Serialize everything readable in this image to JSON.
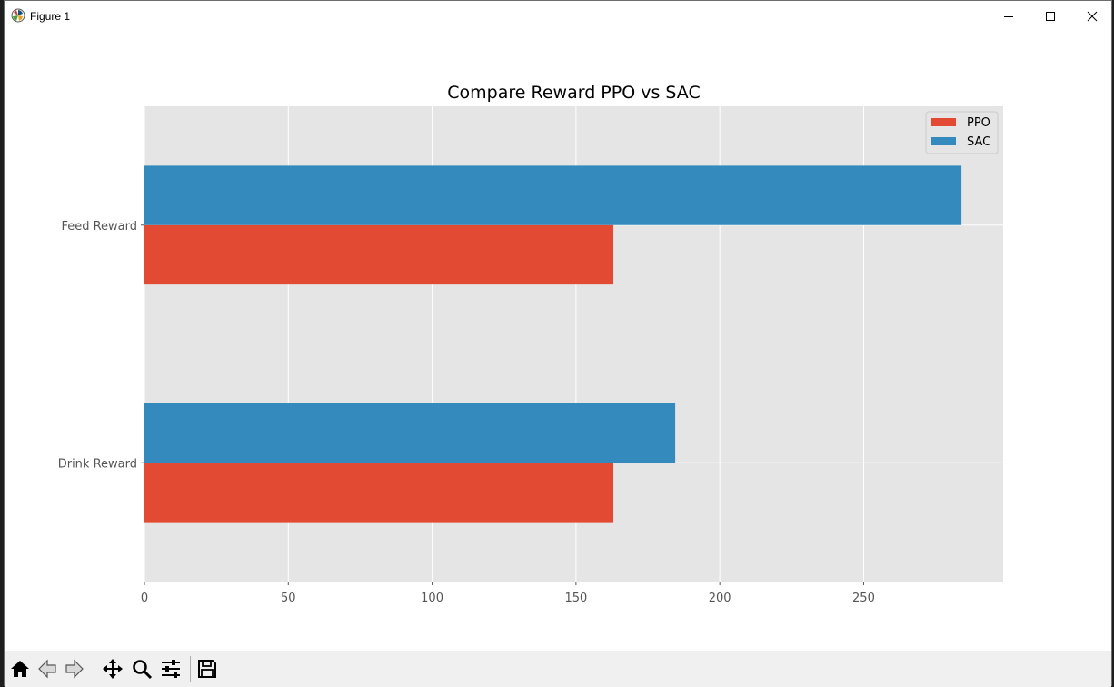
{
  "window": {
    "title": "Figure 1"
  },
  "toolbar": {
    "buttons": [
      {
        "name": "home-button",
        "icon": "home-icon"
      },
      {
        "name": "back-button",
        "icon": "back-arrow-icon"
      },
      {
        "name": "forward-button",
        "icon": "forward-arrow-icon"
      },
      {
        "name": "pan-button",
        "icon": "move-icon"
      },
      {
        "name": "zoom-button",
        "icon": "zoom-icon"
      },
      {
        "name": "configure-subplots-button",
        "icon": "sliders-icon"
      },
      {
        "name": "save-button",
        "icon": "save-icon"
      }
    ]
  },
  "chart_data": {
    "type": "bar",
    "orientation": "horizontal",
    "title": "Compare Reward PPO vs SAC",
    "xlabel": "",
    "ylabel": "",
    "categories": [
      "Drink Reward",
      "Feed Reward"
    ],
    "series": [
      {
        "name": "PPO",
        "values": [
          163,
          163
        ],
        "color": "#E24A33"
      },
      {
        "name": "SAC",
        "values": [
          184.5,
          284
        ],
        "color": "#348ABD"
      }
    ],
    "xticks": [
      "0",
      "50",
      "100",
      "150",
      "200",
      "250"
    ],
    "xlim": [
      0,
      298.5
    ],
    "grid": true,
    "legend_position": "upper right",
    "style": "ggplot",
    "background": "#E5E5E5"
  }
}
